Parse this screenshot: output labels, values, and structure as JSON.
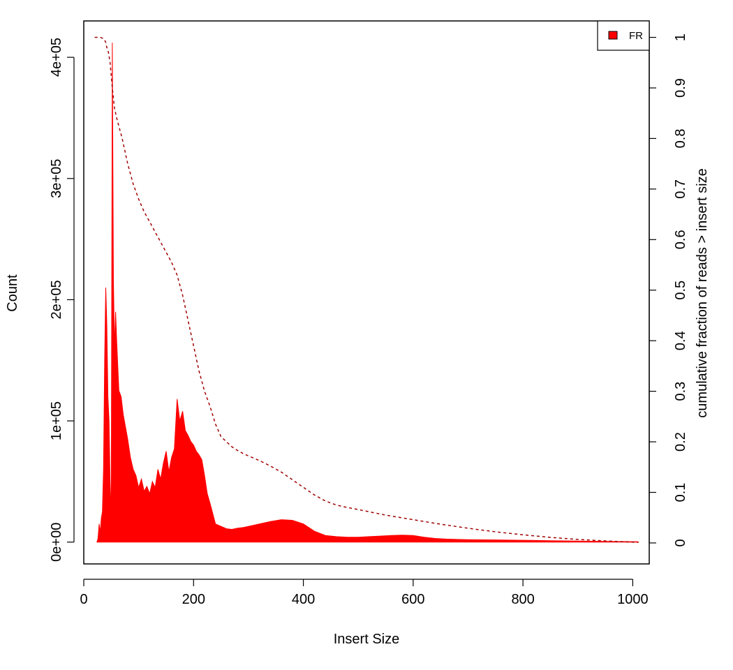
{
  "chart_data": {
    "type": "area",
    "title": "",
    "xlabel": "Insert Size",
    "ylabel": "Count",
    "y2label": "cumulative fraction of reads > insert size",
    "xlim": [
      0,
      1030
    ],
    "ylim": [
      -18000,
      430000
    ],
    "y2lim": [
      -0.0415,
      1.0325
    ],
    "x_ticks": [
      0,
      200,
      400,
      600,
      800,
      1000
    ],
    "y_ticks": [
      0,
      100000,
      200000,
      300000,
      400000
    ],
    "y_tick_labels": [
      "0e+00",
      "1e+05",
      "2e+05",
      "3e+05",
      "4e+05"
    ],
    "y2_ticks": [
      0,
      0.1,
      0.2,
      0.3,
      0.4,
      0.5,
      0.6,
      0.7,
      0.8,
      0.9,
      1
    ],
    "y2_tick_labels": [
      "0",
      "0.1",
      "0.2",
      "0.3",
      "0.4",
      "0.5",
      "0.6",
      "0.7",
      "0.8",
      "0.9",
      "1"
    ],
    "legend": {
      "position": "top-right",
      "entries": [
        {
          "label": "FR",
          "color": "#ff0000"
        }
      ]
    },
    "grid": false,
    "series": [
      {
        "name": "FR",
        "kind": "histogram-area",
        "color": "#ff0000",
        "x": [
          24,
          26,
          28,
          30,
          32,
          34,
          36,
          38,
          40,
          42,
          44,
          46,
          48,
          50,
          52,
          54,
          56,
          58,
          60,
          64,
          68,
          72,
          76,
          80,
          85,
          90,
          95,
          100,
          105,
          110,
          115,
          120,
          125,
          130,
          135,
          140,
          145,
          150,
          155,
          160,
          165,
          170,
          175,
          180,
          185,
          190,
          195,
          200,
          205,
          210,
          215,
          220,
          225,
          230,
          240,
          250,
          260,
          270,
          280,
          290,
          300,
          320,
          340,
          360,
          380,
          400,
          420,
          440,
          460,
          480,
          500,
          520,
          540,
          560,
          580,
          600,
          620,
          640,
          660,
          680,
          700,
          750,
          800,
          850,
          900,
          950,
          1010
        ],
        "y": [
          0,
          3000,
          15000,
          8000,
          20000,
          25000,
          60000,
          150000,
          210000,
          180000,
          120000,
          100000,
          50000,
          20000,
          412000,
          215000,
          160000,
          190000,
          165000,
          125000,
          120000,
          105000,
          95000,
          85000,
          70000,
          60000,
          55000,
          45000,
          52000,
          42000,
          46000,
          40000,
          50000,
          45000,
          60000,
          52000,
          65000,
          75000,
          58000,
          70000,
          77000,
          118000,
          100000,
          108000,
          92000,
          88000,
          83000,
          80000,
          75000,
          72000,
          68000,
          55000,
          40000,
          32000,
          15000,
          13000,
          11000,
          10500,
          11500,
          12000,
          13000,
          15000,
          17000,
          18500,
          18000,
          15000,
          9000,
          5500,
          4500,
          4000,
          4000,
          4500,
          5000,
          5500,
          5800,
          5500,
          4000,
          3000,
          2500,
          2200,
          2000,
          1800,
          1500,
          1200,
          900,
          600,
          300
        ]
      },
      {
        "name": "",
        "kind": "cumulative-dashed",
        "axis": "right",
        "color": "#a00000",
        "x": [
          20,
          30,
          35,
          38,
          40,
          42,
          45,
          48,
          52,
          56,
          60,
          65,
          70,
          80,
          90,
          100,
          110,
          120,
          130,
          140,
          150,
          160,
          170,
          180,
          190,
          200,
          210,
          220,
          230,
          240,
          250,
          260,
          270,
          280,
          290,
          300,
          320,
          340,
          360,
          380,
          400,
          420,
          440,
          460,
          480,
          500,
          550,
          600,
          650,
          700,
          750,
          800,
          850,
          900,
          950,
          1010
        ],
        "y": [
          1.0,
          1.0,
          0.998,
          0.995,
          0.99,
          0.98,
          0.97,
          0.95,
          0.9,
          0.86,
          0.84,
          0.82,
          0.8,
          0.75,
          0.71,
          0.68,
          0.655,
          0.635,
          0.615,
          0.595,
          0.575,
          0.555,
          0.53,
          0.49,
          0.44,
          0.39,
          0.34,
          0.3,
          0.27,
          0.235,
          0.21,
          0.2,
          0.19,
          0.183,
          0.177,
          0.172,
          0.163,
          0.152,
          0.14,
          0.125,
          0.11,
          0.095,
          0.083,
          0.075,
          0.07,
          0.066,
          0.055,
          0.046,
          0.037,
          0.029,
          0.022,
          0.016,
          0.011,
          0.007,
          0.004,
          0.001
        ]
      }
    ]
  }
}
